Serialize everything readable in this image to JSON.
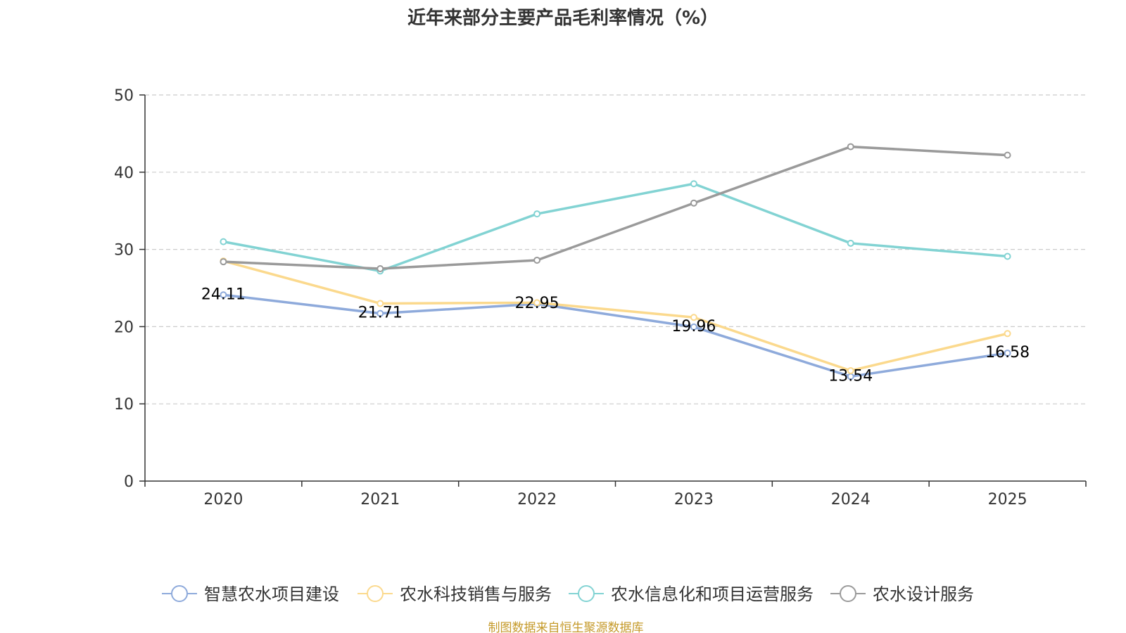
{
  "chart_data": {
    "type": "line",
    "title": "近年来部分主要产品毛利率情况（%）",
    "categories": [
      "2020",
      "2021",
      "2022",
      "2023",
      "2024",
      "2025"
    ],
    "ylim": [
      0,
      50
    ],
    "yticks": [
      0,
      10,
      20,
      30,
      40,
      50
    ],
    "grid": true,
    "legend_position": "bottom",
    "series": [
      {
        "name": "智慧农水项目建设",
        "color": "#8eaadb",
        "values": [
          24.11,
          21.71,
          22.95,
          19.96,
          13.54,
          16.58
        ],
        "labels": [
          "24.11",
          "21.71",
          "22.95",
          "19.96",
          "13.54",
          "16.58"
        ]
      },
      {
        "name": "农水科技销售与服务",
        "color": "#fbd98d",
        "values": [
          28.5,
          23.0,
          23.1,
          21.2,
          14.3,
          19.1
        ]
      },
      {
        "name": "农水信息化和项目运营服务",
        "color": "#82d3d3",
        "values": [
          31.0,
          27.2,
          34.6,
          38.5,
          30.8,
          29.1
        ]
      },
      {
        "name": "农水设计服务",
        "color": "#9a9a9a",
        "values": [
          28.4,
          27.5,
          28.6,
          36.0,
          43.3,
          42.2
        ]
      }
    ],
    "source": "制图数据来自恒生聚源数据库"
  }
}
